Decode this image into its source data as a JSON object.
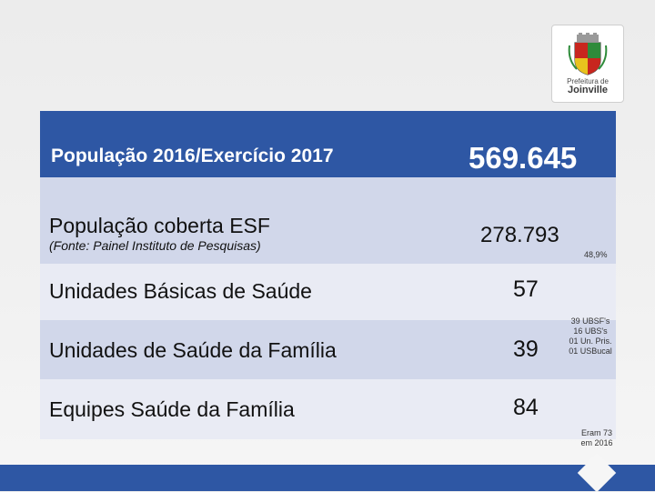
{
  "logo": {
    "line1": "Prefeitura de",
    "line2": "Joinville"
  },
  "rows": {
    "population": {
      "label": "População 2016/Exercício 2017",
      "value": "569.645"
    },
    "coverage": {
      "label": "População coberta ESF",
      "value": "278.793",
      "source": "(Fonte: Painel Instituto de Pesquisas)",
      "percent": "48,9%"
    },
    "ubs": {
      "label": "Unidades Básicas de Saúde",
      "value": "57"
    },
    "usf": {
      "label": "Unidades de Saúde da Família",
      "value": "39"
    },
    "esf": {
      "label": "Equipes Saúde da Família",
      "value": "84"
    }
  },
  "notes": {
    "units": [
      "39 UBSF's",
      "16 UBS's",
      "01 Un. Pris.",
      "01 USBucal"
    ],
    "teams": [
      "Eram 73",
      "em 2016"
    ]
  },
  "colors": {
    "header_blue": "#2e57a4",
    "row_dark": "#d1d7ea",
    "row_light": "#e9ebf4"
  }
}
